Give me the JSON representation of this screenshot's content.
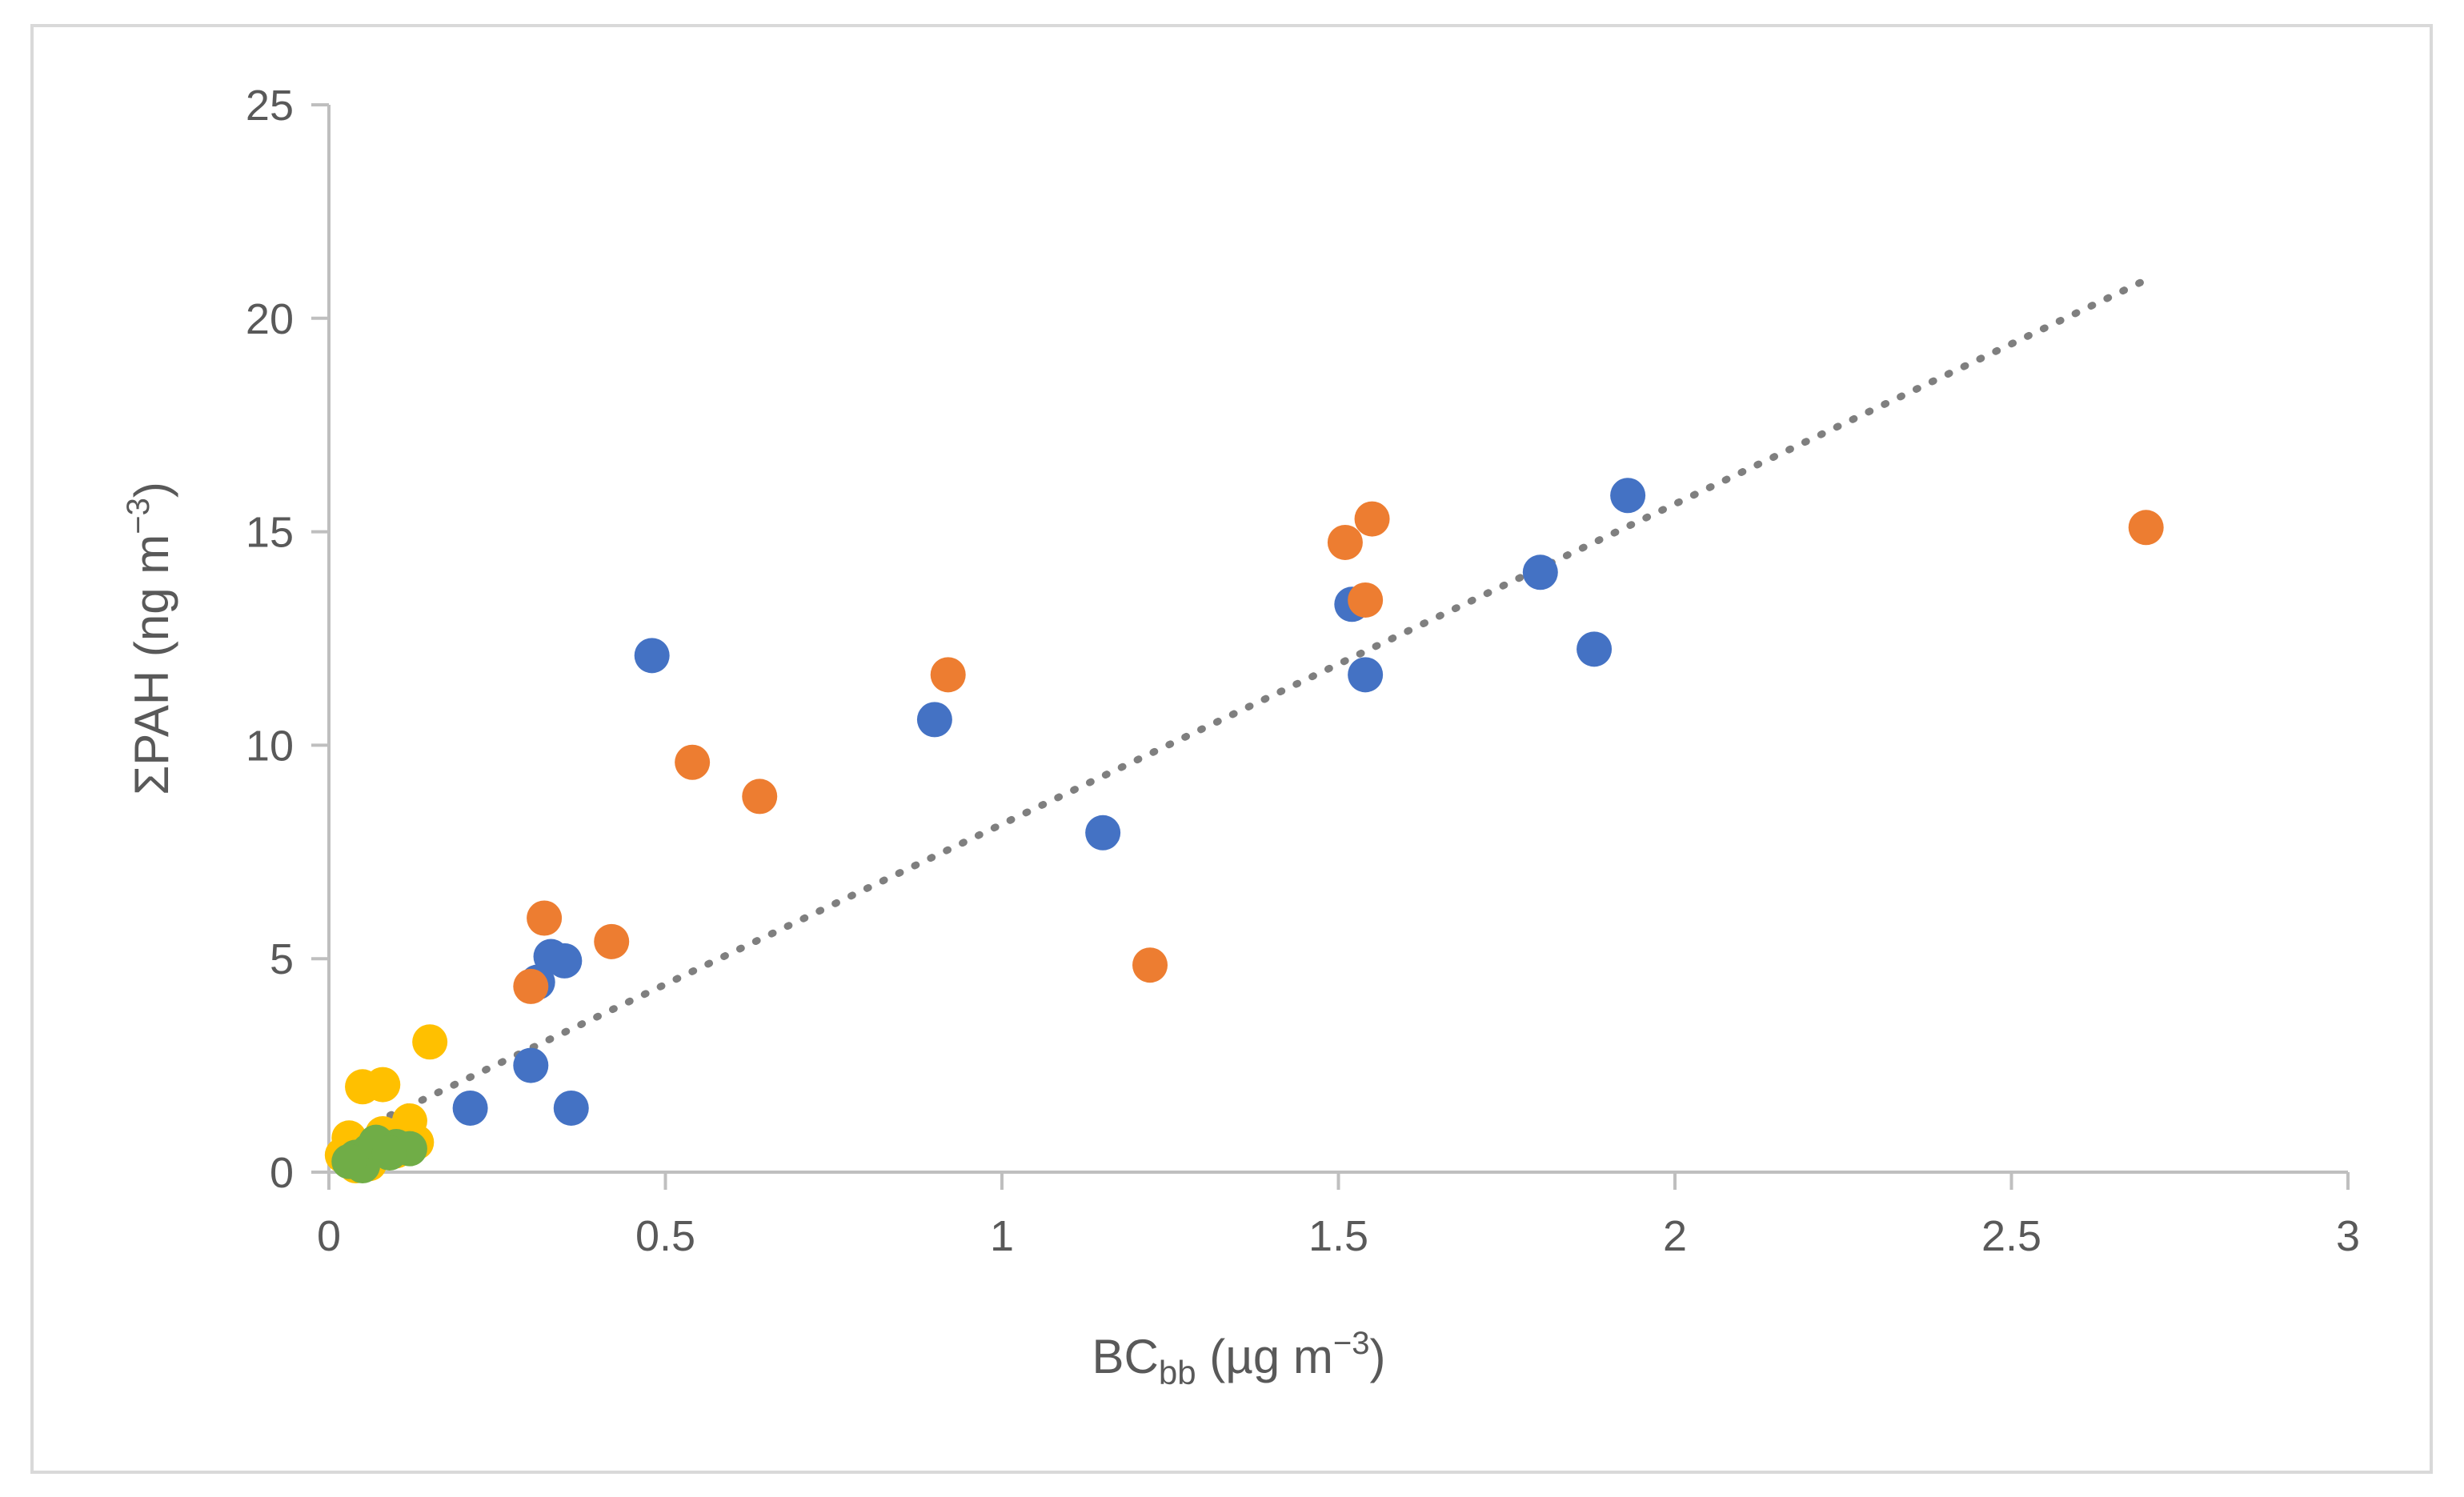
{
  "chart_data": {
    "type": "scatter",
    "title": "",
    "xlabel_main": "BC",
    "xlabel_sub": "bb",
    "xlabel_unit": " (µg m",
    "xlabel_sup": "−3",
    "xlabel_close": ")",
    "ylabel_main": "ΣPAH (ng m",
    "ylabel_sup": "−3",
    "ylabel_close": ")",
    "xlim": [
      0,
      3
    ],
    "ylim": [
      0,
      25
    ],
    "x_ticks": [
      0,
      0.5,
      1,
      1.5,
      2,
      2.5,
      3
    ],
    "x_tick_labels": [
      "0",
      "0.5",
      "1",
      "1.5",
      "2",
      "2.5",
      "3"
    ],
    "y_ticks": [
      0,
      5,
      10,
      15,
      20,
      25
    ],
    "y_tick_labels": [
      "0",
      "5",
      "10",
      "15",
      "20",
      "25"
    ],
    "grid": false,
    "legend": "none",
    "colors": {
      "axis": "#bfbfbf",
      "text": "#595959",
      "trend": "#7f7f7f"
    },
    "series": [
      {
        "name": "blue",
        "color": "#4472c4",
        "points": [
          [
            0.48,
            12.1
          ],
          [
            0.9,
            10.6
          ],
          [
            1.15,
            7.95
          ],
          [
            1.52,
            13.3
          ],
          [
            1.54,
            11.65
          ],
          [
            1.8,
            14.05
          ],
          [
            1.88,
            12.25
          ],
          [
            1.93,
            15.85
          ],
          [
            0.33,
            5.05
          ],
          [
            0.35,
            4.95
          ],
          [
            0.31,
            4.45
          ],
          [
            0.3,
            2.5
          ],
          [
            0.36,
            1.5
          ],
          [
            0.21,
            1.5
          ]
        ]
      },
      {
        "name": "orange",
        "color": "#ed7d31",
        "points": [
          [
            0.54,
            9.6
          ],
          [
            0.64,
            8.8
          ],
          [
            0.92,
            11.65
          ],
          [
            1.22,
            4.85
          ],
          [
            1.51,
            14.75
          ],
          [
            1.55,
            15.3
          ],
          [
            1.54,
            13.4
          ],
          [
            2.7,
            15.1
          ],
          [
            0.32,
            5.95
          ],
          [
            0.42,
            5.4
          ],
          [
            0.3,
            4.35
          ]
        ]
      },
      {
        "name": "yellow",
        "color": "#ffc000",
        "points": [
          [
            0.15,
            3.05
          ],
          [
            0.05,
            2.0
          ],
          [
            0.08,
            2.05
          ],
          [
            0.12,
            1.2
          ],
          [
            0.13,
            0.7
          ],
          [
            0.03,
            0.8
          ],
          [
            0.02,
            0.4
          ],
          [
            0.04,
            0.15
          ],
          [
            0.06,
            0.2
          ],
          [
            0.08,
            0.9
          ],
          [
            0.1,
            0.5
          ],
          [
            0.03,
            0.3
          ]
        ]
      },
      {
        "name": "green",
        "color": "#70ad47",
        "points": [
          [
            0.04,
            0.35
          ],
          [
            0.06,
            0.5
          ],
          [
            0.08,
            0.55
          ],
          [
            0.1,
            0.6
          ],
          [
            0.12,
            0.55
          ],
          [
            0.05,
            0.15
          ],
          [
            0.07,
            0.7
          ],
          [
            0.09,
            0.45
          ],
          [
            0.03,
            0.25
          ]
        ]
      }
    ],
    "trendline": {
      "style": "dotted",
      "color": "#7f7f7f",
      "x": [
        0.02,
        2.7
      ],
      "y": [
        0.8,
        20.9
      ]
    }
  }
}
